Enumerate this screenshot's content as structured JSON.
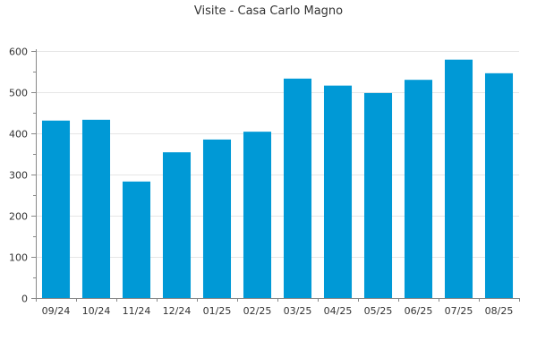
{
  "chart_data": {
    "type": "bar",
    "title": "Visite - Casa Carlo Magno",
    "xlabel": "",
    "ylabel": "",
    "ylim": [
      0,
      600
    ],
    "yticks": [
      0,
      100,
      200,
      300,
      400,
      500,
      600
    ],
    "grid": true,
    "legend": "none",
    "categories": [
      "09/24",
      "10/24",
      "11/24",
      "12/24",
      "01/25",
      "02/25",
      "03/25",
      "04/25",
      "05/25",
      "06/25",
      "07/25",
      "08/25"
    ],
    "series": [
      {
        "values": [
          431,
          433,
          283,
          354,
          385,
          404,
          533,
          516,
          498,
          530,
          579,
          546
        ],
        "color": "#0099d6"
      }
    ]
  }
}
